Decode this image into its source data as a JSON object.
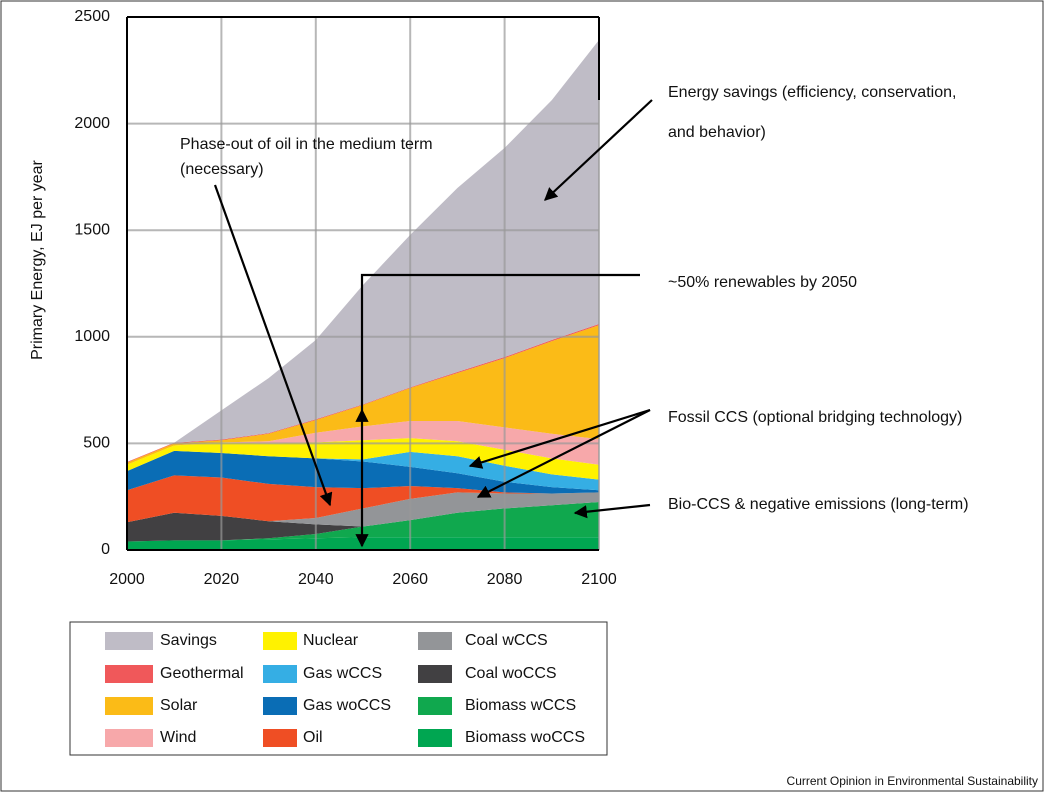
{
  "chart_data": {
    "type": "area",
    "stacked": true,
    "ylabel": "Primary Energy, EJ per year",
    "x": [
      2000,
      2010,
      2020,
      2030,
      2040,
      2050,
      2060,
      2070,
      2080,
      2090,
      2100
    ],
    "xlim": [
      2000,
      2100
    ],
    "xticks": [
      2000,
      2020,
      2040,
      2060,
      2080,
      2100
    ],
    "ylim": [
      0,
      2500
    ],
    "yticks": [
      0,
      500,
      1000,
      1500,
      2000,
      2500
    ],
    "grid": true,
    "series": [
      {
        "name": "Savings",
        "color": "#bfbcc6",
        "values": [
          0,
          0,
          137,
          258,
          372,
          560,
          715,
          863,
          981,
          1125,
          1332
        ]
      },
      {
        "name": "Geothermal",
        "color": "#f0585a",
        "values": [
          3,
          3,
          3,
          3,
          3,
          3,
          3,
          5,
          5,
          5,
          5
        ]
      },
      {
        "name": "Solar",
        "color": "#fbbb17",
        "values": [
          10,
          10,
          10,
          35,
          60,
          100,
          155,
          225,
          325,
          435,
          535
        ]
      },
      {
        "name": "Wind",
        "color": "#f7a8aa",
        "values": [
          0,
          0,
          0,
          10,
          45,
          65,
          80,
          95,
          105,
          115,
          120
        ]
      },
      {
        "name": "Nuclear",
        "color": "#fff200",
        "values": [
          30,
          25,
          50,
          60,
          75,
          90,
          65,
          70,
          75,
          75,
          70
        ]
      },
      {
        "name": "Gas wCCS",
        "color": "#35aee4",
        "values": [
          0,
          0,
          0,
          0,
          0,
          10,
          70,
          80,
          75,
          60,
          50
        ]
      },
      {
        "name": "Gas woCCS",
        "color": "#0a6db5",
        "values": [
          90,
          115,
          115,
          130,
          135,
          125,
          90,
          70,
          50,
          30,
          10
        ]
      },
      {
        "name": "Oil",
        "color": "#ef4e24",
        "values": [
          150,
          175,
          180,
          175,
          145,
          95,
          60,
          20,
          5,
          0,
          0
        ]
      },
      {
        "name": "Coal wCCS",
        "color": "#939598",
        "values": [
          0,
          0,
          0,
          0,
          30,
          85,
          100,
          95,
          70,
          55,
          45
        ]
      },
      {
        "name": "Coal woCCS",
        "color": "#414042",
        "values": [
          90,
          130,
          115,
          80,
          45,
          0,
          0,
          0,
          0,
          0,
          0
        ]
      },
      {
        "name": "Biomass wCCS",
        "color": "#10a84e",
        "values": [
          0,
          0,
          0,
          5,
          20,
          50,
          80,
          115,
          135,
          150,
          165
        ]
      },
      {
        "name": "Biomass woCCS",
        "color": "#00a651",
        "values": [
          40,
          45,
          45,
          50,
          55,
          60,
          60,
          60,
          60,
          60,
          60
        ]
      }
    ],
    "annotations": [
      "Phase-out of oil in the medium term",
      "(necessary)",
      "Energy savings (efficiency, conservation,",
      "and behavior)",
      "~50% renewables by 2050",
      "Fossil CCS (optional bridging technology)",
      "Bio-CCS & negative emissions (long-term)"
    ],
    "source": "Current Opinion in Environmental Sustainability"
  }
}
